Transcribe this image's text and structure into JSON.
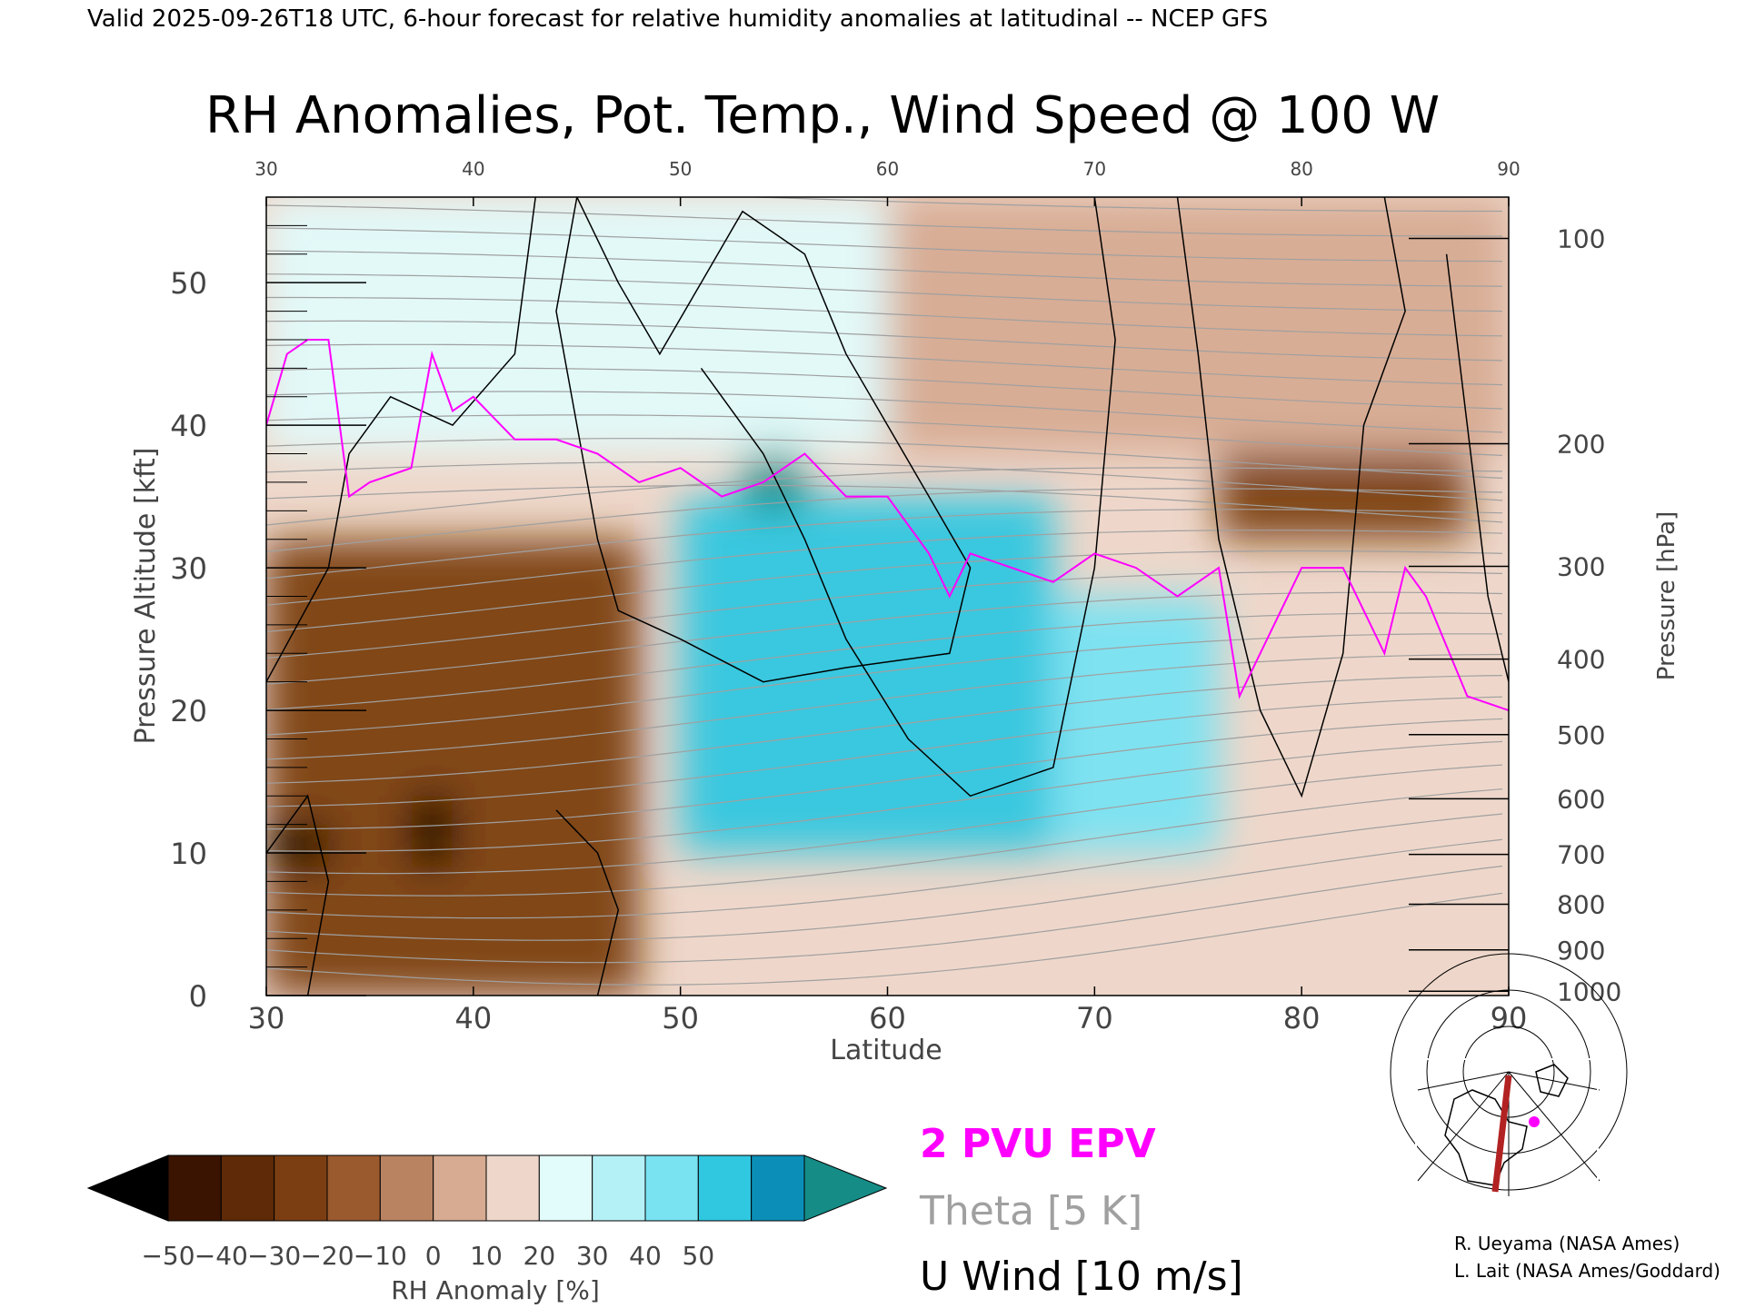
{
  "header": {
    "valid_line": "Valid 2025-09-26T18 UTC, 6-hour forecast for relative humidity anomalies at latitudinal -- NCEP GFS",
    "title": "RH Anomalies, Pot. Temp., Wind Speed @ 100 W"
  },
  "chart_data": {
    "type": "heatmap",
    "xlabel": "Latitude",
    "ylabel_left": "Pressure Altitude [kft]",
    "ylabel_right": "Pressure [hPa]",
    "xlim": [
      30,
      90
    ],
    "ylim_kft": [
      0,
      56
    ],
    "x_ticks": [
      "30",
      "40",
      "50",
      "60",
      "70",
      "80",
      "90"
    ],
    "y_ticks_kft": [
      "0",
      "10",
      "20",
      "30",
      "40",
      "50"
    ],
    "y_tick_values_kft": [
      0,
      10,
      20,
      30,
      40,
      50
    ],
    "pressure_ticks": [
      {
        "label": "100",
        "kft": 53.1
      },
      {
        "label": "200",
        "kft": 38.7
      },
      {
        "label": "300",
        "kft": 30.1
      },
      {
        "label": "400",
        "kft": 23.6
      },
      {
        "label": "500",
        "kft": 18.3
      },
      {
        "label": "600",
        "kft": 13.8
      },
      {
        "label": "700",
        "kft": 9.9
      },
      {
        "label": "800",
        "kft": 6.4
      },
      {
        "label": "900",
        "kft": 3.2
      },
      {
        "label": "1000",
        "kft": 0.3
      }
    ],
    "rh_anomaly_regions": [
      {
        "lat": [
          30,
          48
        ],
        "kft": [
          0,
          32
        ],
        "anomaly": -40
      },
      {
        "lat": [
          30,
          33
        ],
        "kft": [
          9,
          12
        ],
        "anomaly": -55
      },
      {
        "lat": [
          37,
          39
        ],
        "kft": [
          9,
          14
        ],
        "anomaly": -55
      },
      {
        "lat": [
          50,
          68
        ],
        "kft": [
          10,
          35
        ],
        "anomaly": 40
      },
      {
        "lat": [
          53,
          56
        ],
        "kft": [
          34,
          40
        ],
        "anomaly": 50
      },
      {
        "lat": [
          68,
          76
        ],
        "kft": [
          10,
          28
        ],
        "anomaly": 35
      },
      {
        "lat": [
          76,
          88
        ],
        "kft": [
          32,
          38
        ],
        "anomaly": -35
      },
      {
        "lat": [
          30,
          60
        ],
        "kft": [
          38,
          56
        ],
        "anomaly": 15
      },
      {
        "lat": [
          60,
          90
        ],
        "kft": [
          38,
          56
        ],
        "anomaly": -10
      }
    ],
    "epv_2pvu_line": {
      "lat": [
        30,
        31,
        32,
        33,
        34,
        35,
        37,
        38,
        39,
        40,
        42,
        44,
        46,
        48,
        50,
        52,
        54,
        56,
        58,
        60,
        62,
        63,
        64,
        66,
        68,
        70,
        72,
        74,
        76,
        77,
        78,
        80,
        82,
        84,
        85,
        86,
        88,
        90
      ],
      "kft": [
        40,
        45,
        46,
        46,
        35,
        36,
        37,
        45,
        41,
        42,
        39,
        39,
        38,
        36,
        37,
        35,
        36,
        38,
        35,
        35,
        31,
        28,
        31,
        30,
        29,
        31,
        30,
        28,
        30,
        21,
        24,
        30,
        30,
        24,
        30,
        28,
        21,
        20
      ]
    },
    "colorbar": {
      "label": "RH Anomaly [%]",
      "tick_labels": [
        "−50",
        "−40",
        "−30",
        "−20",
        "−10",
        "0",
        "10",
        "20",
        "30",
        "40",
        "50"
      ],
      "colors": [
        "#3a1400",
        "#5e2a07",
        "#7b3e12",
        "#9a5a2e",
        "#b98362",
        "#d7ab92",
        "#eed7ca",
        "#e2fbfb",
        "#b4f1f6",
        "#79e3f2",
        "#30c7e0",
        "#0b8fb8"
      ],
      "under_color": "#000000",
      "over_color": "#158c86"
    }
  },
  "legend": {
    "epv": "2 PVU EPV",
    "theta": "Theta [5 K]",
    "wind": "U Wind [10 m/s]"
  },
  "credits": {
    "line1": "R. Ueyama (NASA Ames)",
    "line2": "L. Lait (NASA Ames/Goddard)"
  },
  "colors": {
    "epv": "#ff00ff",
    "theta": "#a0a0a0",
    "wind": "#000000",
    "map_track": "#b22222"
  },
  "inset_map": {
    "icon": "north-america-polar-map-icon"
  }
}
